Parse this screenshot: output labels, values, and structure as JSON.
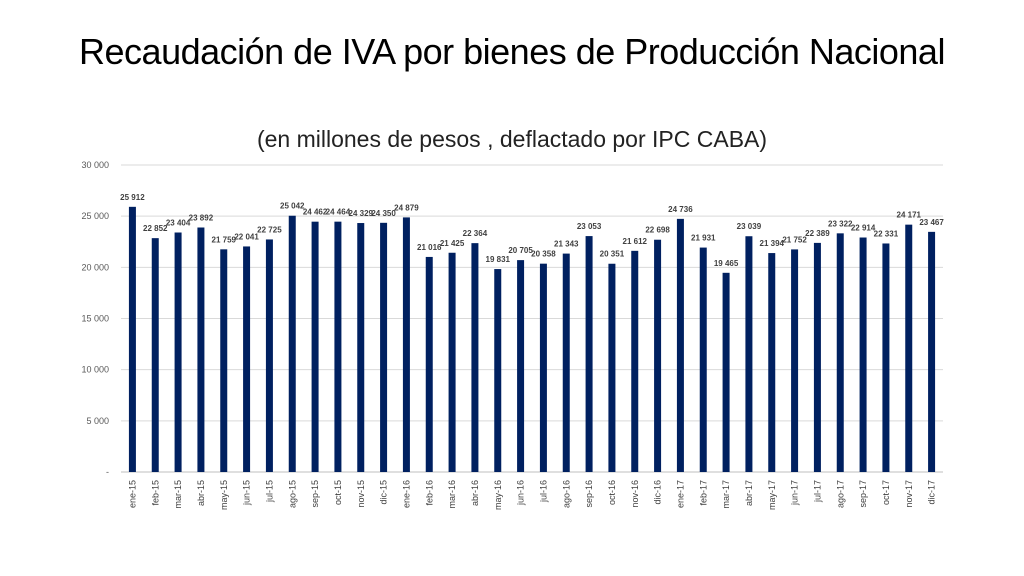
{
  "title": "Recaudación de IVA por bienes de Producción Nacional",
  "subtitle": "(en millones de pesos , deflactado por IPC CABA)",
  "colors": {
    "bar": "#002060",
    "grid": "#d9d9d9",
    "axis": "#bfbfbf"
  },
  "chart_data": {
    "type": "bar",
    "title": "Recaudación de IVA por bienes de Producción Nacional",
    "subtitle": "(en millones de pesos , deflactado por IPC CABA)",
    "xlabel": "",
    "ylabel": "",
    "ylim": [
      0,
      30000
    ],
    "yticks": [
      0,
      5000,
      10000,
      15000,
      20000,
      25000,
      30000
    ],
    "ytick_labels": [
      "-",
      "5 000",
      "10 000",
      "15 000",
      "20 000",
      "25 000",
      "30 000"
    ],
    "grid": true,
    "legend": "none",
    "categories": [
      "ene-15",
      "feb-15",
      "mar-15",
      "abr-15",
      "may-15",
      "jun-15",
      "jul-15",
      "ago-15",
      "sep-15",
      "oct-15",
      "nov-15",
      "dic-15",
      "ene-16",
      "feb-16",
      "mar-16",
      "abr-16",
      "may-16",
      "jun-16",
      "jul-16",
      "ago-16",
      "sep-16",
      "oct-16",
      "nov-16",
      "dic-16",
      "ene-17",
      "feb-17",
      "mar-17",
      "abr-17",
      "may-17",
      "jun-17",
      "jul-17",
      "ago-17",
      "sep-17",
      "oct-17",
      "nov-17",
      "dic-17"
    ],
    "values": [
      25912,
      22852,
      23404,
      23892,
      21759,
      22041,
      22725,
      25042,
      24462,
      24464,
      24329,
      24350,
      24879,
      21016,
      21425,
      22364,
      19831,
      20705,
      20358,
      21343,
      23053,
      20351,
      21612,
      22698,
      24736,
      21931,
      19465,
      23039,
      21394,
      21752,
      22389,
      23322,
      22914,
      22331,
      24171,
      23467
    ],
    "value_labels": [
      "25 912",
      "22 852",
      "23 404",
      "23 892",
      "21 759",
      "22 041",
      "22 725",
      "25 042",
      "24 462",
      "24 464",
      "24 329",
      "24 350",
      "24 879",
      "21 016",
      "21 425",
      "22 364",
      "19 831",
      "20 705",
      "20 358",
      "21 343",
      "23 053",
      "20 351",
      "21 612",
      "22 698",
      "24 736",
      "21 931",
      "19 465",
      "23 039",
      "21 394",
      "21 752",
      "22 389",
      "23 322",
      "22 914",
      "22 331",
      "24 171",
      "23 467"
    ]
  }
}
